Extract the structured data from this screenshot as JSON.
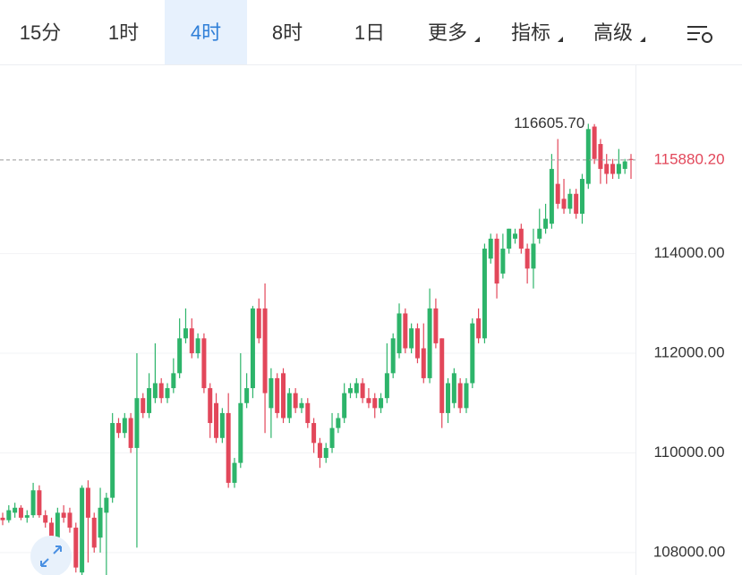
{
  "tabs": [
    {
      "label": "15分"
    },
    {
      "label": "1时"
    },
    {
      "label": "4时",
      "selected": true
    },
    {
      "label": "8时"
    },
    {
      "label": "1日"
    },
    {
      "label": "更多",
      "dropdown": true
    },
    {
      "label": "指标",
      "dropdown": true
    },
    {
      "label": "高级",
      "dropdown": true
    }
  ],
  "chart_data": {
    "type": "candlestick",
    "up_color": "#2db46a",
    "down_color": "#e2475a",
    "ylim": [
      107550,
      117780
    ],
    "yticks": [
      {
        "value": 108000,
        "label": "108000.00"
      },
      {
        "value": 110000,
        "label": "110000.00"
      },
      {
        "value": 112000,
        "label": "112000.00"
      },
      {
        "value": 114000,
        "label": "114000.00"
      }
    ],
    "grid": true,
    "high_label": {
      "value": 116605.7,
      "label": "116605.70"
    },
    "last_price": {
      "value": 115880.2,
      "label": "115880.20"
    },
    "open": [
      108700,
      108650,
      108800,
      108900,
      108700,
      108750,
      109250,
      108750,
      108600,
      108300,
      108800,
      108800,
      108500,
      107600,
      109300,
      108700,
      108300,
      108800,
      109100,
      110600,
      110400,
      110700,
      110100,
      111100,
      110800,
      111100,
      111400,
      111100,
      111300,
      111600,
      112300,
      112500,
      112000,
      112300,
      111300,
      111000,
      110300,
      110800,
      109400,
      109800,
      111000,
      111300,
      112900,
      112900,
      110900,
      111500,
      111600,
      110700,
      111200,
      110900,
      111000,
      110600,
      110200,
      109900,
      110100,
      110500,
      110700,
      111200,
      111200,
      111400,
      111100,
      111100,
      110900,
      111100,
      111600,
      112000,
      112800,
      112100,
      112500,
      112100,
      111500,
      112900,
      112300,
      110800,
      111000,
      111400,
      110900,
      111400,
      112700,
      112300,
      113900,
      114300,
      113600,
      114100,
      114300,
      114500,
      114100,
      113700,
      114300,
      114500,
      114600,
      115400,
      115100,
      114900,
      115200,
      114800,
      115400,
      116550,
      116200,
      115800,
      115800,
      115600,
      115700,
      115900
    ],
    "high": [
      108800,
      108950,
      109000,
      108950,
      108850,
      109400,
      109350,
      108850,
      108700,
      108900,
      108950,
      108900,
      108600,
      109350,
      109450,
      108800,
      109300,
      109200,
      110800,
      110700,
      110800,
      110800,
      112000,
      111200,
      111600,
      112200,
      111500,
      111400,
      111900,
      112700,
      112900,
      112700,
      112400,
      112400,
      111400,
      111200,
      110900,
      111200,
      109900,
      112000,
      111600,
      112950,
      113100,
      113400,
      111700,
      111600,
      111700,
      111300,
      111300,
      111100,
      111100,
      110700,
      110300,
      110200,
      110800,
      110800,
      111400,
      111400,
      111500,
      111500,
      111300,
      111200,
      111200,
      112200,
      112400,
      113000,
      112900,
      112600,
      112600,
      112600,
      113300,
      113100,
      112300,
      111500,
      111700,
      111500,
      111500,
      112700,
      112900,
      114200,
      114400,
      114400,
      114400,
      114500,
      114500,
      114600,
      114200,
      114500,
      114900,
      115000,
      116000,
      116300,
      115500,
      115300,
      115300,
      115600,
      116605.7,
      116600,
      116300,
      116000,
      115900,
      116100,
      115900,
      116000
    ],
    "low": [
      108550,
      108600,
      108700,
      108650,
      108600,
      108700,
      108700,
      108500,
      107900,
      108250,
      108600,
      108400,
      107600,
      107550,
      107800,
      108000,
      108000,
      107500,
      109000,
      110300,
      110300,
      110000,
      108100,
      110700,
      110700,
      111000,
      111000,
      111000,
      111200,
      111500,
      112200,
      111900,
      111900,
      111200,
      110300,
      110200,
      110200,
      109300,
      109300,
      109700,
      110900,
      111100,
      112200,
      110400,
      110300,
      110700,
      110600,
      110600,
      110800,
      110800,
      110500,
      110000,
      109700,
      109800,
      110000,
      110400,
      110600,
      111100,
      111100,
      111000,
      110900,
      110700,
      110800,
      111000,
      111500,
      111900,
      112000,
      112000,
      111800,
      111400,
      111400,
      112100,
      110500,
      110600,
      110900,
      110800,
      110800,
      111300,
      112200,
      112200,
      113800,
      113100,
      113500,
      114000,
      114200,
      114000,
      113400,
      113300,
      114200,
      114400,
      114500,
      114900,
      114800,
      114800,
      114700,
      114600,
      115300,
      115800,
      115400,
      115400,
      115500,
      115500,
      115600,
      115500
    ],
    "close": [
      108650,
      108850,
      108900,
      108700,
      108750,
      109250,
      108750,
      108600,
      108300,
      108800,
      108700,
      108500,
      107700,
      109300,
      108700,
      108100,
      108900,
      109100,
      110600,
      110400,
      110700,
      110100,
      111100,
      110800,
      111300,
      111400,
      111100,
      111300,
      111600,
      112300,
      112500,
      112000,
      112300,
      111300,
      110600,
      110300,
      110800,
      109400,
      109800,
      111000,
      111300,
      112900,
      112300,
      111200,
      111500,
      110800,
      110700,
      111200,
      110900,
      111000,
      110600,
      110200,
      109900,
      110100,
      110500,
      110700,
      111200,
      111300,
      111400,
      111100,
      111000,
      110900,
      111100,
      111600,
      112300,
      112800,
      112100,
      112500,
      111900,
      111500,
      112900,
      112200,
      110800,
      111400,
      111600,
      110900,
      111400,
      112600,
      112300,
      114100,
      114300,
      113400,
      114100,
      114500,
      114400,
      114100,
      113700,
      114200,
      114500,
      114700,
      115700,
      115000,
      114900,
      115200,
      114800,
      115500,
      116500,
      115900,
      115700,
      115600,
      115600,
      115800,
      115850,
      115880.2
    ]
  }
}
